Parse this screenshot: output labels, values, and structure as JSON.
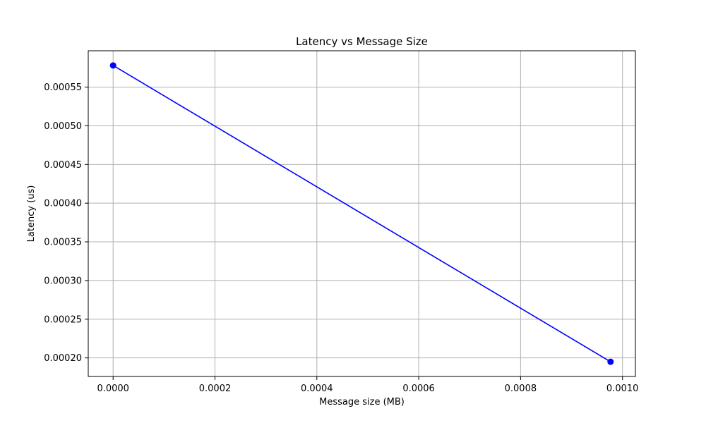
{
  "chart_data": {
    "type": "line",
    "title": "Latency vs Message Size",
    "xlabel": "Message size (MB)",
    "ylabel": "Latency (us)",
    "xlim": [
      -4.88e-05,
      0.0010254
    ],
    "ylim": [
      0.000176,
      0.000597
    ],
    "x_ticks": [
      0.0,
      0.0002,
      0.0004,
      0.0006,
      0.0008,
      0.001
    ],
    "x_tick_labels": [
      "0.0000",
      "0.0002",
      "0.0004",
      "0.0006",
      "0.0008",
      "0.0010"
    ],
    "y_ticks": [
      0.0002,
      0.00025,
      0.0003,
      0.00035,
      0.0004,
      0.00045,
      0.0005,
      0.00055
    ],
    "y_tick_labels": [
      "0.00020",
      "0.00025",
      "0.00030",
      "0.00035",
      "0.00040",
      "0.00045",
      "0.00050",
      "0.00055"
    ],
    "grid": true,
    "legend": false,
    "series": [
      {
        "color": "#0000ff",
        "marker": "circle",
        "x": [
          0.0,
          0.0009766
        ],
        "y": [
          0.000578,
          0.000195
        ]
      }
    ]
  }
}
